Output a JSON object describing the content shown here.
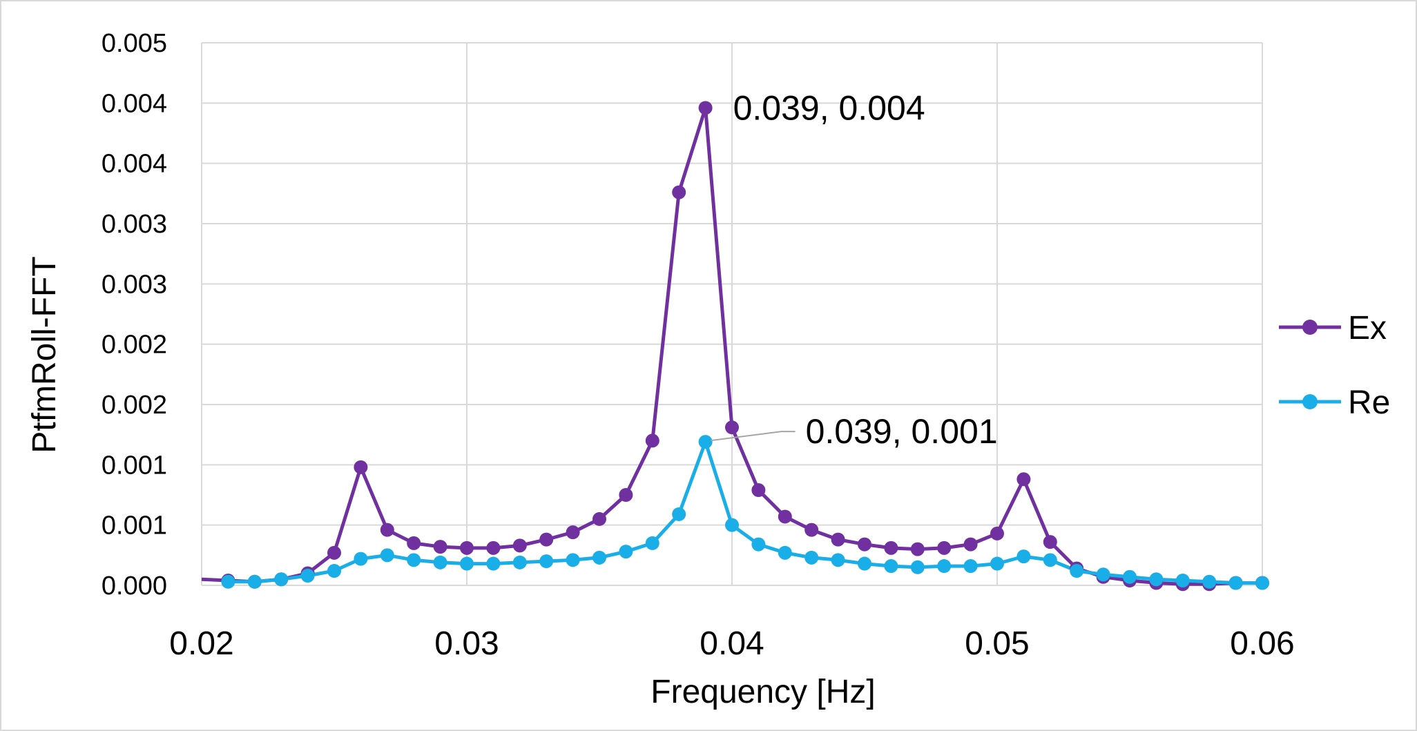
{
  "chart_data": {
    "type": "line",
    "xlabel": "Frequency [Hz]",
    "ylabel": "PtfmRoll-FFT",
    "xlim": [
      0.02,
      0.06
    ],
    "ylim": [
      0,
      0.004
    ],
    "x_ticks": [
      0.02,
      0.03,
      0.04,
      0.05,
      0.06
    ],
    "x_tick_labels": [
      "0.02",
      "0.03",
      "0.04",
      "0.05",
      "0.06"
    ],
    "y_tick_labels": [
      "0.000",
      "0.001",
      "0.001",
      "0.002",
      "0.002",
      "0.003",
      "0.003",
      "0.004",
      "0.004",
      "0.005"
    ],
    "grid": true,
    "legend_position": "right",
    "series": [
      {
        "name": "Ex",
        "color": "#7030a0",
        "x": [
          0.02,
          0.021,
          0.022,
          0.023,
          0.024,
          0.025,
          0.026,
          0.027,
          0.028,
          0.029,
          0.03,
          0.031,
          0.032,
          0.033,
          0.034,
          0.035,
          0.036,
          0.037,
          0.038,
          0.039,
          0.04,
          0.041,
          0.042,
          0.043,
          0.044,
          0.045,
          0.046,
          0.047,
          0.048,
          0.049,
          0.05,
          0.051,
          0.052,
          0.053,
          0.054,
          0.055,
          0.056,
          0.057,
          0.058,
          0.059,
          0.06
        ],
        "y": [
          5e-05,
          4e-05,
          3e-05,
          5e-05,
          0.0001,
          0.00027,
          0.00098,
          0.00046,
          0.00035,
          0.00032,
          0.00031,
          0.00031,
          0.00033,
          0.00038,
          0.00044,
          0.00055,
          0.00075,
          0.0012,
          0.00326,
          0.00396,
          0.00131,
          0.00079,
          0.00057,
          0.00046,
          0.00038,
          0.00034,
          0.00031,
          0.0003,
          0.00031,
          0.00034,
          0.00043,
          0.00088,
          0.00036,
          0.00014,
          7e-05,
          4e-05,
          2e-05,
          1e-05,
          1e-05,
          2e-05,
          2e-05
        ]
      },
      {
        "name": "Re",
        "color": "#19aee8",
        "x": [
          0.021,
          0.022,
          0.023,
          0.024,
          0.025,
          0.026,
          0.027,
          0.028,
          0.029,
          0.03,
          0.031,
          0.032,
          0.033,
          0.034,
          0.035,
          0.036,
          0.037,
          0.038,
          0.039,
          0.04,
          0.041,
          0.042,
          0.043,
          0.044,
          0.045,
          0.046,
          0.047,
          0.048,
          0.049,
          0.05,
          0.051,
          0.052,
          0.053,
          0.054,
          0.055,
          0.056,
          0.057,
          0.058,
          0.059,
          0.06
        ],
        "y": [
          3e-05,
          3e-05,
          5e-05,
          8e-05,
          0.00012,
          0.00022,
          0.00025,
          0.00021,
          0.00019,
          0.00018,
          0.00018,
          0.00019,
          0.0002,
          0.00021,
          0.00023,
          0.00028,
          0.00035,
          0.00059,
          0.00119,
          0.0005,
          0.00034,
          0.00027,
          0.00023,
          0.00021,
          0.00018,
          0.00016,
          0.00015,
          0.00016,
          0.00016,
          0.00018,
          0.00024,
          0.00021,
          0.00012,
          9e-05,
          7e-05,
          5e-05,
          4e-05,
          3e-05,
          2e-05,
          2e-05
        ]
      }
    ],
    "annotations": [
      {
        "text": "0.039, 0.004",
        "series": "Ex",
        "x": 0.039,
        "y": 0.00396
      },
      {
        "text": "0.039, 0.001",
        "series": "Re",
        "x": 0.039,
        "y": 0.00119
      }
    ]
  }
}
